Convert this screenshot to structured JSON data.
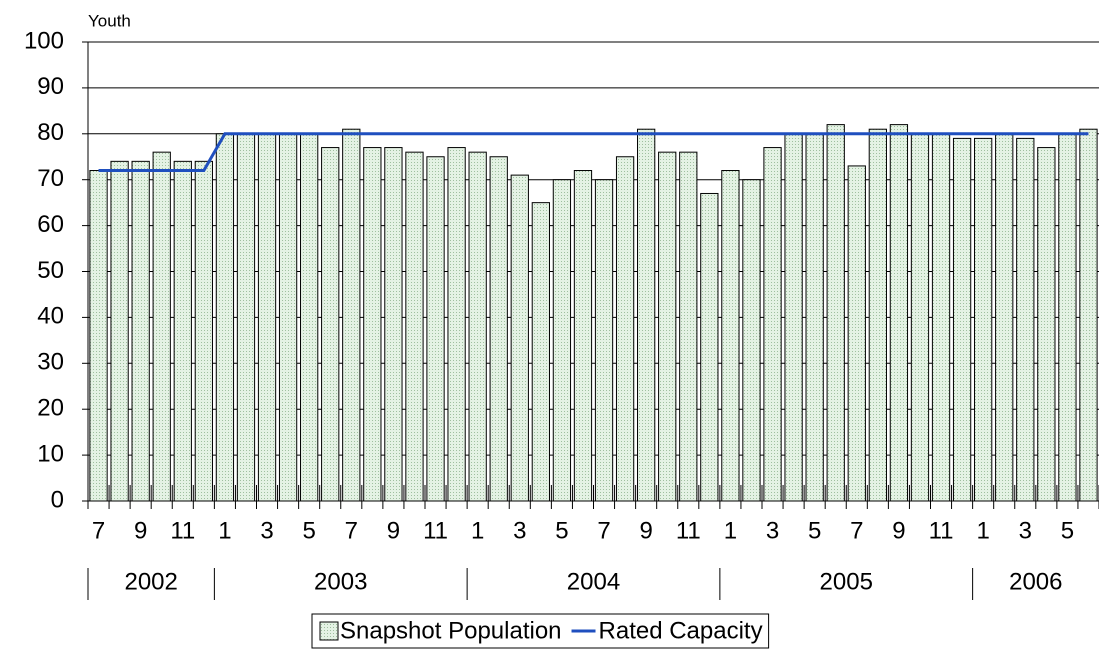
{
  "chart_data": {
    "type": "bar",
    "y_axis_label": "Youth",
    "categories": [
      "7",
      null,
      "9",
      null,
      "11",
      null,
      "1",
      null,
      "3",
      null,
      "5",
      null,
      "7",
      null,
      "9",
      null,
      "11",
      null,
      "1",
      null,
      "3",
      null,
      "5",
      null,
      "7",
      null,
      "9",
      null,
      "11",
      null,
      "1",
      null,
      "3",
      null,
      "5",
      null,
      "7",
      null,
      "9",
      null,
      "11",
      null,
      "1",
      null,
      "3",
      null,
      "5",
      null
    ],
    "year_groups": [
      {
        "label": "2002",
        "count": 6
      },
      {
        "label": "2003",
        "count": 12
      },
      {
        "label": "2004",
        "count": 12
      },
      {
        "label": "2005",
        "count": 12
      },
      {
        "label": "2006",
        "count": 6
      }
    ],
    "series": [
      {
        "name": "Snapshot Population",
        "type": "bar",
        "color": "#d6ead6",
        "values": [
          72,
          74,
          74,
          76,
          74,
          74,
          80,
          80,
          80,
          80,
          80,
          77,
          81,
          77,
          77,
          76,
          75,
          77,
          76,
          75,
          71,
          65,
          70,
          72,
          70,
          75,
          81,
          76,
          76,
          67,
          72,
          70,
          77,
          80,
          80,
          82,
          73,
          81,
          82,
          80,
          80,
          79,
          79,
          80,
          79,
          77,
          80,
          81
        ]
      },
      {
        "name": "Rated Capacity",
        "type": "line",
        "color": "#1f4fbf",
        "values": [
          72,
          72,
          72,
          72,
          72,
          72,
          80,
          80,
          80,
          80,
          80,
          80,
          80,
          80,
          80,
          80,
          80,
          80,
          80,
          80,
          80,
          80,
          80,
          80,
          80,
          80,
          80,
          80,
          80,
          80,
          80,
          80,
          80,
          80,
          80,
          80,
          80,
          80,
          80,
          80,
          80,
          80,
          80,
          80,
          80,
          80,
          80,
          80
        ]
      }
    ],
    "ylim": [
      0,
      100
    ],
    "yticks": [
      0,
      10,
      20,
      30,
      40,
      50,
      60,
      70,
      80,
      90,
      100
    ],
    "grid": true
  }
}
